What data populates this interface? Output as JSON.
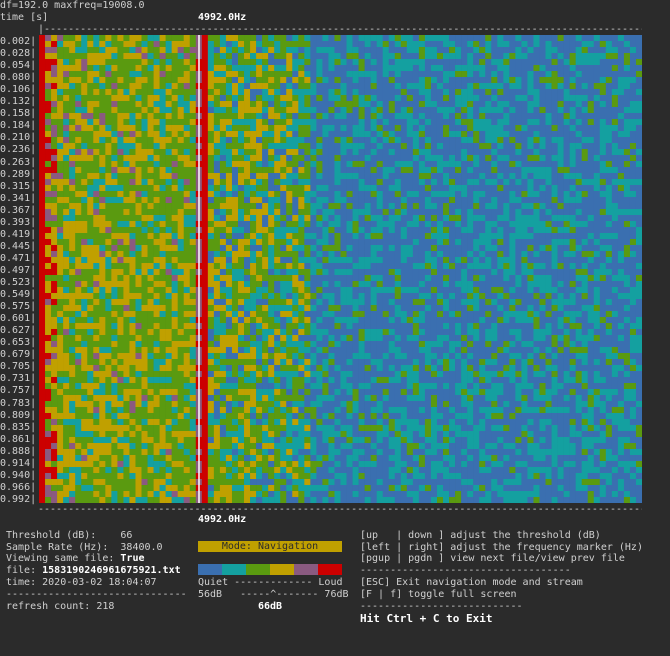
{
  "header": {
    "params": "df=192.0 maxfreq=19008.0",
    "axis_label": "time [s]",
    "freq_marker_top": "4992.0Hz",
    "freq_marker_bottom": "4992.0Hz"
  },
  "time_labels": [
    "0.002",
    "0.028",
    "0.054",
    "0.080",
    "0.106",
    "0.132",
    "0.158",
    "0.184",
    "0.210",
    "0.236",
    "0.263",
    "0.289",
    "0.315",
    "0.341",
    "0.367",
    "0.393",
    "0.419",
    "0.445",
    "0.471",
    "0.497",
    "0.523",
    "0.549",
    "0.575",
    "0.601",
    "0.627",
    "0.653",
    "0.679",
    "0.705",
    "0.731",
    "0.757",
    "0.783",
    "0.809",
    "0.835",
    "0.861",
    "0.888",
    "0.914",
    "0.940",
    "0.966",
    "0.992"
  ],
  "colors": {
    "c0": "#3a6fb0",
    "c1": "#14a0a0",
    "c2": "#5a9a10",
    "c3": "#c0a000",
    "c4": "#8a5a80",
    "c5": "#cc0000",
    "background": "#2b2b2b"
  },
  "info": {
    "threshold_label": "Threshold (dB):",
    "threshold_value": "66",
    "sample_rate_label": "Sample Rate (Hz):",
    "sample_rate_value": "38400.0",
    "same_file_label": "Viewing same file:",
    "same_file_value": "True",
    "file_label": "file:",
    "file_value": "1583190246961675921.txt",
    "time_label": "time:",
    "time_value": "2020-03-02 18:04:07",
    "separator": "------------------------------",
    "refresh_label": "refresh count:",
    "refresh_value": "218"
  },
  "mode": {
    "label": "Mode: Navigation"
  },
  "legend": {
    "scale_text": "Quiet ------------- Loud",
    "range_text": "56dB   -----^------- 76dB",
    "current_db": "66dB"
  },
  "help": {
    "line1": "[up   | down ] adjust the threshold (dB)",
    "line2": "[left | right] adjust the frequency marker (Hz)",
    "line3": "[pgup | pgdn ] view next file/view prev file",
    "separator": "-----------------------------------",
    "line4": "[ESC] Exit navigation mode and stream",
    "line5": "[F | f] toggle full screen",
    "separator2": "---------------------------",
    "exit": "Hit Ctrl + C to Exit"
  }
}
